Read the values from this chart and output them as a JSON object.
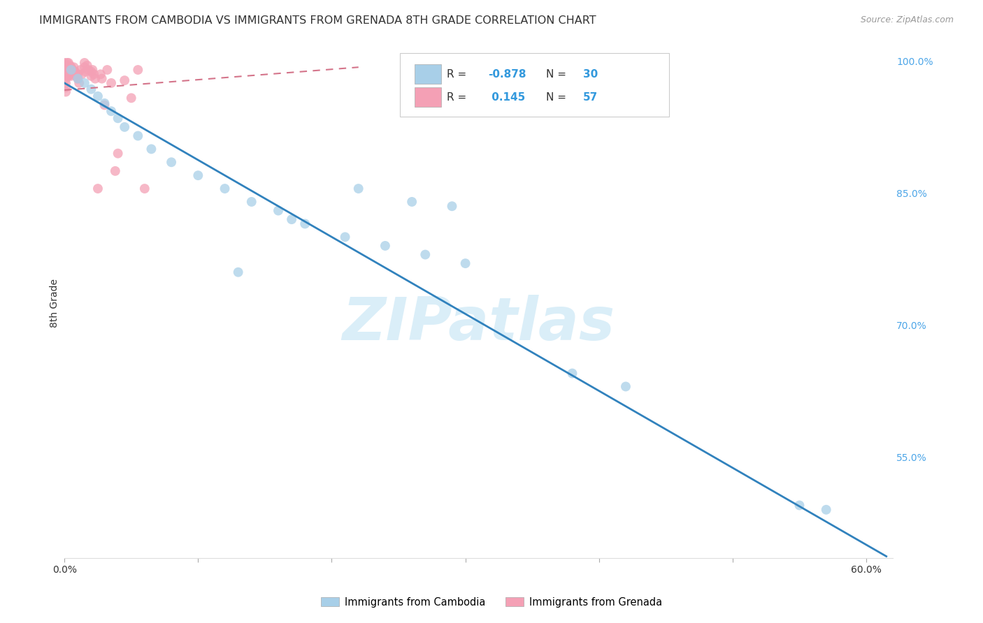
{
  "title": "IMMIGRANTS FROM CAMBODIA VS IMMIGRANTS FROM GRENADA 8TH GRADE CORRELATION CHART",
  "source": "Source: ZipAtlas.com",
  "ylabel": "8th Grade",
  "watermark": "ZIPatlas",
  "legend_label_blue": "Immigrants from Cambodia",
  "legend_label_pink": "Immigrants from Grenada",
  "r_blue": -0.878,
  "n_blue": 30,
  "r_pink": 0.145,
  "n_pink": 57,
  "blue_color": "#a8cfe8",
  "pink_color": "#f4a0b5",
  "blue_line_color": "#3182bd",
  "pink_line_color": "#d4748a",
  "xmin": 0.0,
  "xmax": 0.62,
  "ymin": 0.435,
  "ymax": 1.015,
  "right_yticks": [
    0.55,
    0.7,
    0.85,
    1.0
  ],
  "right_ytick_labels": [
    "55.0%",
    "70.0%",
    "85.0%",
    "100.0%"
  ],
  "xticks": [
    0.0,
    0.1,
    0.2,
    0.3,
    0.4,
    0.5,
    0.6
  ],
  "xtick_labels": [
    "0.0%",
    "",
    "",
    "",
    "",
    "",
    "60.0%"
  ],
  "blue_scatter_x": [
    0.005,
    0.01,
    0.015,
    0.02,
    0.025,
    0.03,
    0.035,
    0.04,
    0.045,
    0.055,
    0.065,
    0.08,
    0.1,
    0.12,
    0.14,
    0.16,
    0.18,
    0.21,
    0.24,
    0.27,
    0.3,
    0.22,
    0.26,
    0.29,
    0.55,
    0.57,
    0.13,
    0.17,
    0.38,
    0.42
  ],
  "blue_scatter_y": [
    0.99,
    0.98,
    0.975,
    0.968,
    0.96,
    0.952,
    0.943,
    0.935,
    0.925,
    0.915,
    0.9,
    0.885,
    0.87,
    0.855,
    0.84,
    0.83,
    0.815,
    0.8,
    0.79,
    0.78,
    0.77,
    0.855,
    0.84,
    0.835,
    0.495,
    0.49,
    0.76,
    0.82,
    0.645,
    0.63
  ],
  "pink_scatter_x": [
    0.0,
    0.0,
    0.0,
    0.001,
    0.001,
    0.001,
    0.001,
    0.001,
    0.001,
    0.001,
    0.002,
    0.002,
    0.002,
    0.002,
    0.003,
    0.003,
    0.003,
    0.003,
    0.004,
    0.004,
    0.004,
    0.005,
    0.005,
    0.005,
    0.006,
    0.006,
    0.007,
    0.007,
    0.008,
    0.009,
    0.01,
    0.01,
    0.011,
    0.012,
    0.013,
    0.015,
    0.015,
    0.016,
    0.017,
    0.018,
    0.02,
    0.02,
    0.021,
    0.022,
    0.023,
    0.025,
    0.027,
    0.028,
    0.03,
    0.032,
    0.035,
    0.038,
    0.04,
    0.045,
    0.05,
    0.055,
    0.06
  ],
  "pink_scatter_y": [
    0.998,
    0.993,
    0.988,
    0.995,
    0.99,
    0.985,
    0.98,
    0.975,
    0.97,
    0.965,
    0.998,
    0.993,
    0.988,
    0.983,
    0.998,
    0.993,
    0.988,
    0.983,
    0.995,
    0.99,
    0.985,
    0.993,
    0.988,
    0.983,
    0.99,
    0.985,
    0.993,
    0.988,
    0.988,
    0.983,
    0.985,
    0.98,
    0.975,
    0.99,
    0.985,
    0.998,
    0.993,
    0.988,
    0.995,
    0.99,
    0.988,
    0.983,
    0.99,
    0.985,
    0.98,
    0.855,
    0.985,
    0.98,
    0.95,
    0.99,
    0.975,
    0.875,
    0.895,
    0.978,
    0.958,
    0.99,
    0.855
  ],
  "blue_line_x": [
    0.0,
    0.615
  ],
  "blue_line_y": [
    0.975,
    0.437
  ],
  "pink_line_x": [
    0.0,
    0.22
  ],
  "pink_line_y": [
    0.967,
    0.993
  ],
  "grid_color": "#c8c8c8",
  "bg_color": "#ffffff",
  "title_fontsize": 11.5,
  "axis_label_fontsize": 10,
  "tick_fontsize": 10,
  "legend_fontsize": 11,
  "watermark_fontsize": 62,
  "watermark_color": "#daeef8",
  "source_fontsize": 9,
  "right_tick_color": "#4da6e8",
  "dark_text_color": "#333333",
  "legend_r_color": "#333333",
  "legend_num_color": "#3399dd"
}
